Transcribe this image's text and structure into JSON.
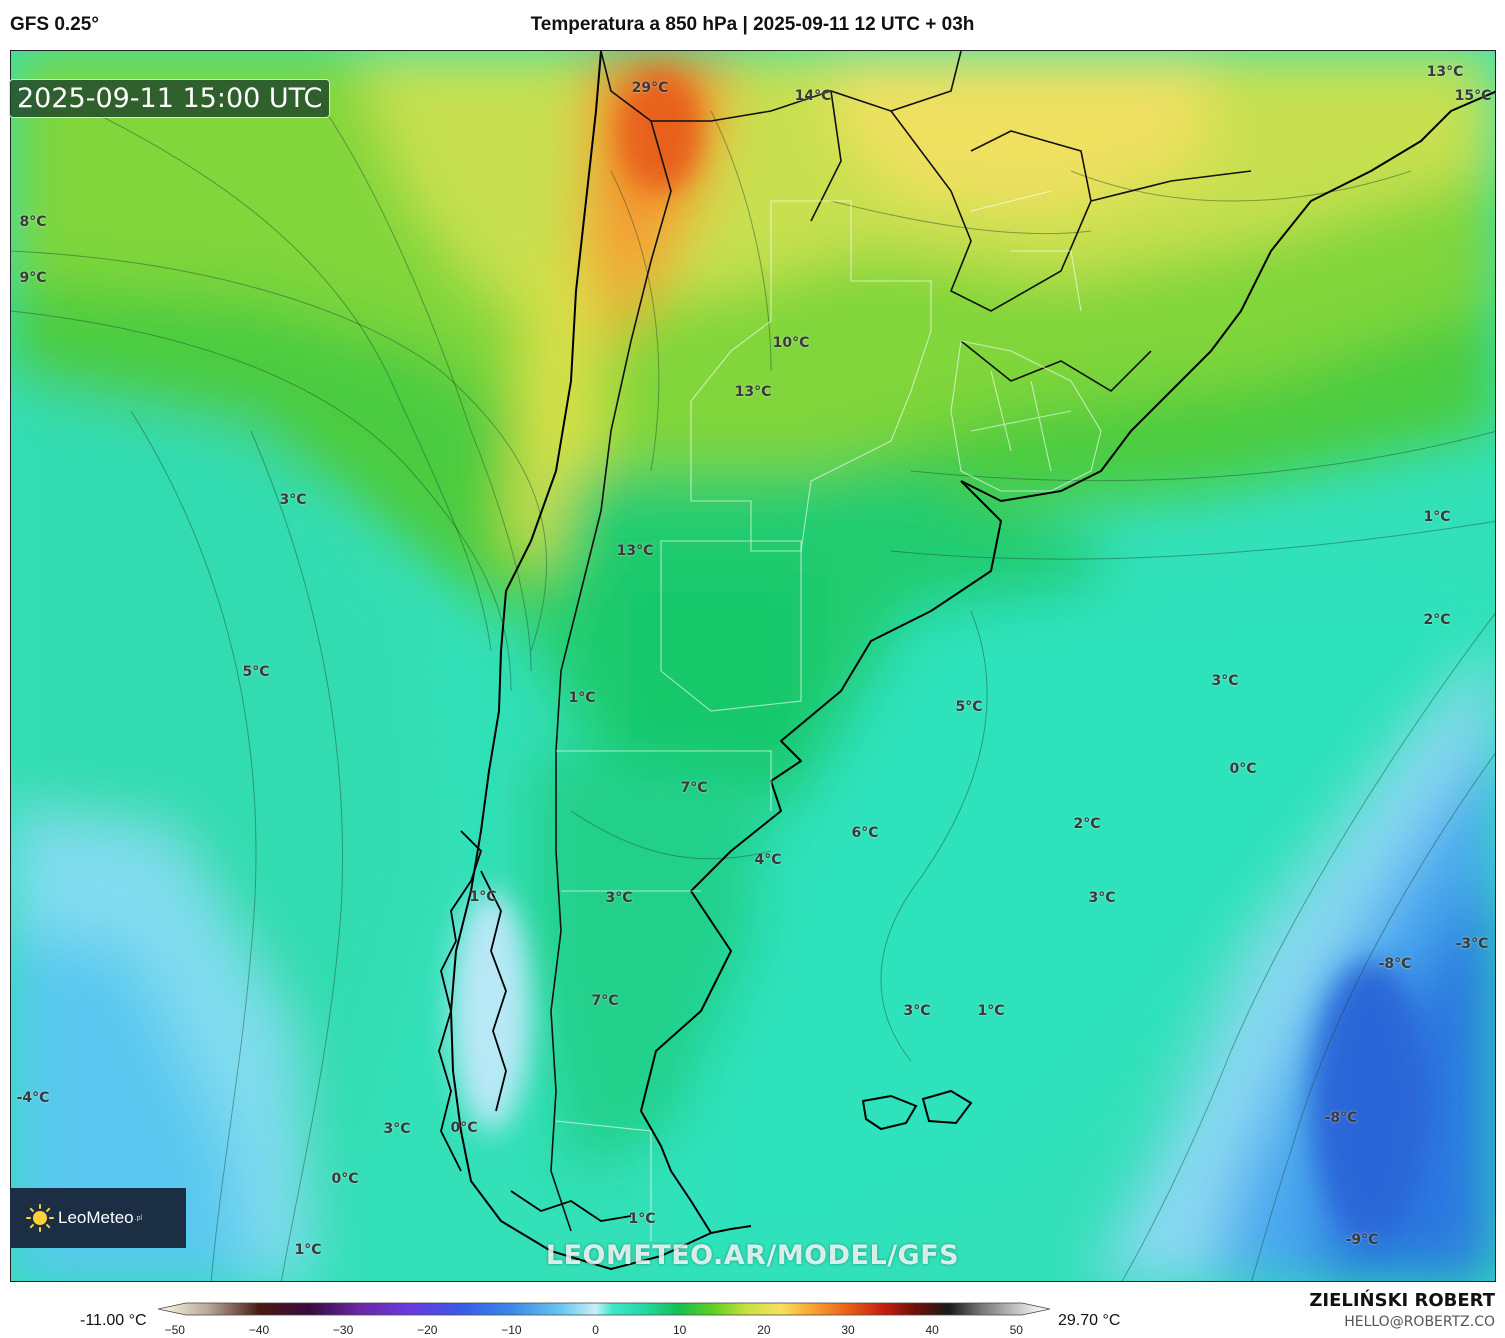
{
  "header": {
    "model": "GFS 0.25°",
    "title": "Temperatura a 850 hPa | 2025-09-11 12 UTC + 03h"
  },
  "valid_time": "2025-09-11 15:00 UTC",
  "watermark": "LEOMETEO.AR/MODEL/GFS",
  "logo": {
    "name": "LeoMeteo",
    "suffix": ".pl"
  },
  "labels": [
    {
      "text": "29°C"
    },
    {
      "text": "14°C"
    },
    {
      "text": "13°C"
    },
    {
      "text": "15°C"
    },
    {
      "text": "8°C"
    },
    {
      "text": "9°C"
    },
    {
      "text": "10°C"
    },
    {
      "text": "13°C"
    },
    {
      "text": "3°C"
    },
    {
      "text": "13°C"
    },
    {
      "text": "1°C"
    },
    {
      "text": "2°C"
    },
    {
      "text": "5°C"
    },
    {
      "text": "1°C"
    },
    {
      "text": "3°C"
    },
    {
      "text": "5°C"
    },
    {
      "text": "0°C"
    },
    {
      "text": "7°C"
    },
    {
      "text": "6°C"
    },
    {
      "text": "4°C"
    },
    {
      "text": "2°C"
    },
    {
      "text": "1°C"
    },
    {
      "text": "3°C"
    },
    {
      "text": "3°C"
    },
    {
      "text": "-3°C"
    },
    {
      "text": "-8°C"
    },
    {
      "text": "7°C"
    },
    {
      "text": "3°C"
    },
    {
      "text": "1°C"
    },
    {
      "text": "-4°C"
    },
    {
      "text": "-8°C"
    },
    {
      "text": "3°C"
    },
    {
      "text": "0°C"
    },
    {
      "text": "0°C"
    },
    {
      "text": "1°C"
    },
    {
      "text": "-9°C"
    },
    {
      "text": "1°C"
    }
  ],
  "colorbar": {
    "min_label": "-11.00 °C",
    "max_label": "29.70 °C",
    "ticks": [
      "−50",
      "−40",
      "−30",
      "−20",
      "−10",
      "0",
      "10",
      "20",
      "30",
      "40",
      "50"
    ],
    "range": [
      -52,
      54
    ],
    "stops": [
      {
        "t": -52,
        "c": "#fffbe8"
      },
      {
        "t": -46,
        "c": "#b8a898"
      },
      {
        "t": -40,
        "c": "#4a1a10"
      },
      {
        "t": -34,
        "c": "#3a0a40"
      },
      {
        "t": -28,
        "c": "#6a28a8"
      },
      {
        "t": -22,
        "c": "#6a3ae0"
      },
      {
        "t": -16,
        "c": "#3a5ae8"
      },
      {
        "t": -10,
        "c": "#3a8ae8"
      },
      {
        "t": -4,
        "c": "#6ac8f0"
      },
      {
        "t": 0,
        "c": "#c8eefa"
      },
      {
        "t": 2,
        "c": "#3ee8c8"
      },
      {
        "t": 6,
        "c": "#20d8a0"
      },
      {
        "t": 10,
        "c": "#14c050"
      },
      {
        "t": 14,
        "c": "#60d020"
      },
      {
        "t": 18,
        "c": "#c8e040"
      },
      {
        "t": 22,
        "c": "#f8e060"
      },
      {
        "t": 26,
        "c": "#f8a030"
      },
      {
        "t": 30,
        "c": "#e86018"
      },
      {
        "t": 34,
        "c": "#c82010"
      },
      {
        "t": 38,
        "c": "#701008"
      },
      {
        "t": 42,
        "c": "#1a1a1a"
      },
      {
        "t": 46,
        "c": "#7a7a7a"
      },
      {
        "t": 52,
        "c": "#e8e8e8"
      },
      {
        "t": 54,
        "c": "#ffffff"
      }
    ]
  },
  "credits": {
    "author": "ZIELIŃSKI ROBERT",
    "email": "HELLO@ROBERTZ.CO"
  },
  "colors": {
    "warm": "#e87a20",
    "mid": "#33cc66",
    "cold": "#3a8ae8"
  }
}
